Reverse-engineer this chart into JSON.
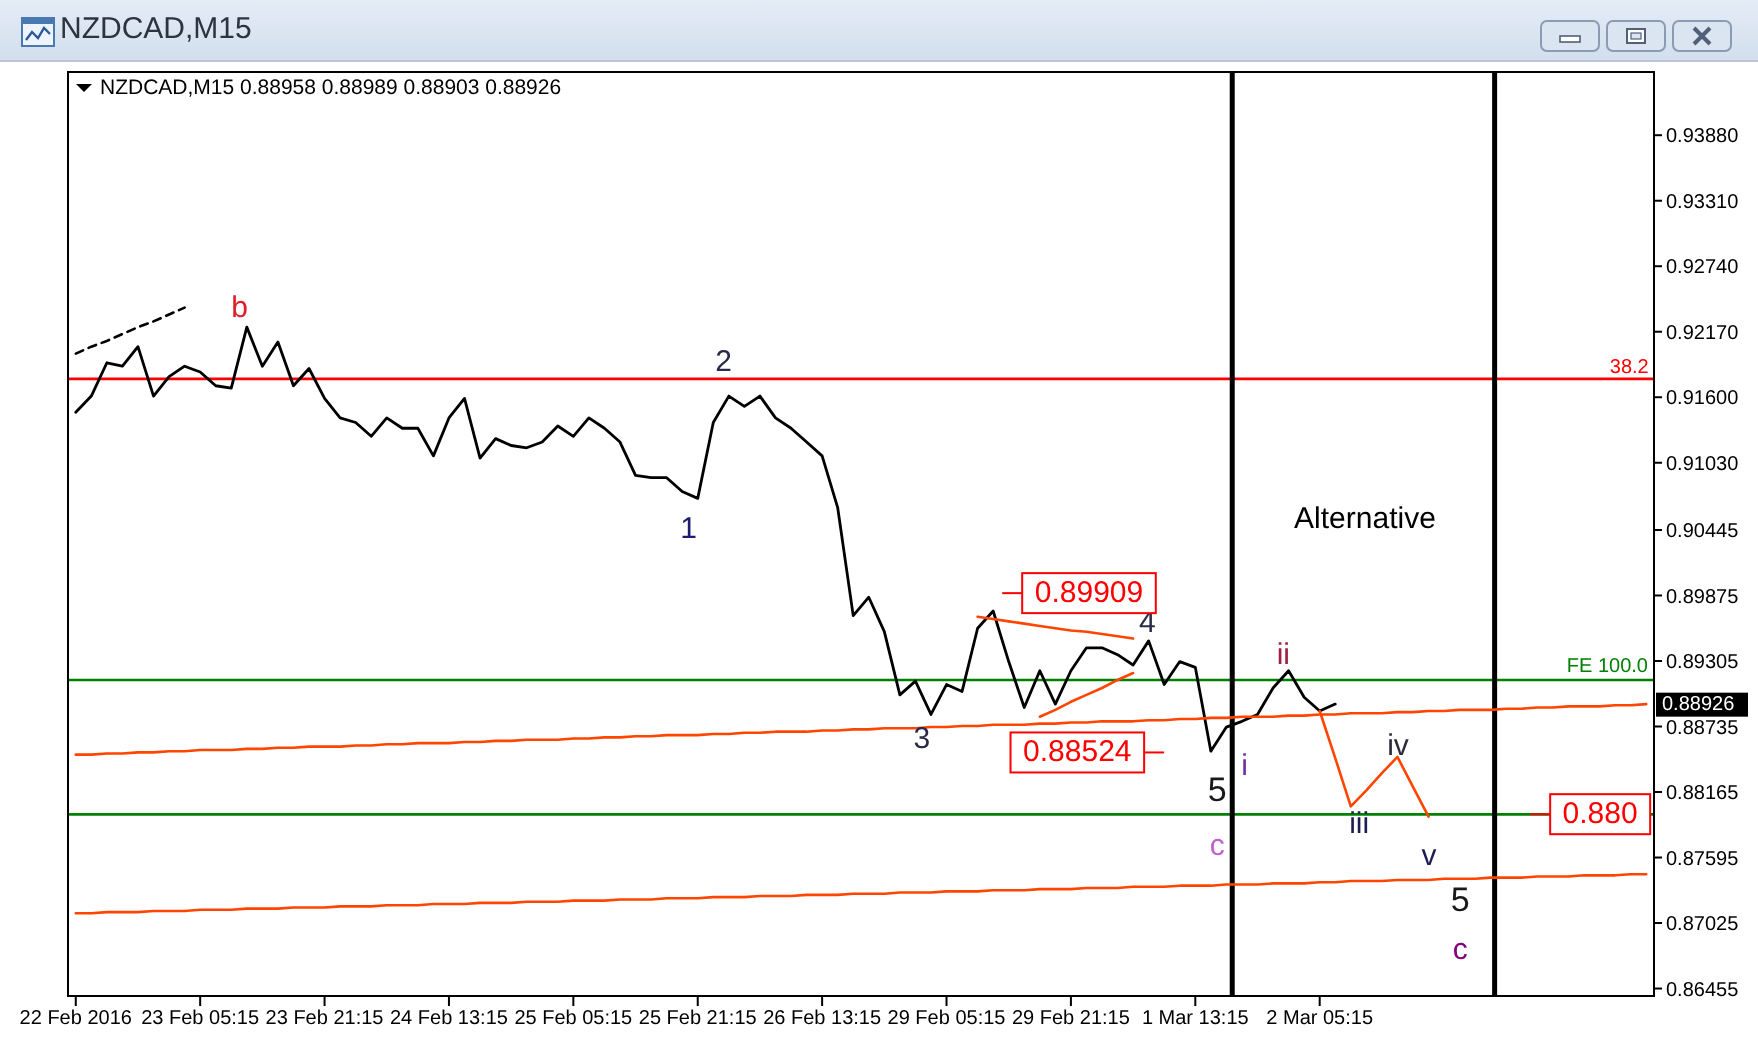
{
  "chart_data": {
    "type": "line",
    "title": "NZDCAD,M15",
    "subtitle": "NZDCAD,M15 0.88958 0.88989 0.88903 0.88926",
    "categories": [
      "22 Feb 2016",
      null,
      null,
      null,
      null,
      null,
      null,
      null,
      "23 Feb 05:15",
      null,
      null,
      null,
      null,
      null,
      null,
      null,
      "23 Feb 21:15",
      null,
      null,
      null,
      null,
      null,
      null,
      null,
      "24 Feb 13:15",
      null,
      null,
      null,
      null,
      null,
      null,
      null,
      "25 Feb 05:15",
      null,
      null,
      null,
      null,
      null,
      null,
      null,
      "25 Feb 21:15",
      null,
      null,
      null,
      null,
      null,
      null,
      null,
      "26 Feb 13:15",
      null,
      null,
      null,
      null,
      null,
      null,
      null,
      "29 Feb 05:15",
      null,
      null,
      null,
      null,
      null,
      null,
      null,
      "29 Feb 21:15",
      null,
      null,
      null,
      null,
      null,
      null,
      null,
      "1 Mar 13:15",
      null,
      null,
      null,
      null,
      null,
      null,
      null,
      "2 Mar 05:15",
      null,
      null,
      null,
      null,
      null,
      null,
      null,
      null,
      null,
      null,
      null,
      null,
      null,
      null,
      null,
      null,
      null,
      null,
      null,
      null,
      null
    ],
    "ylim": [
      0.8639,
      0.9443
    ],
    "yticks": [
      {
        "value": 0.9388,
        "label": "0.93880"
      },
      {
        "value": 0.9331,
        "label": "0.93310"
      },
      {
        "value": 0.9274,
        "label": "0.92740"
      },
      {
        "value": 0.9217,
        "label": "0.92170"
      },
      {
        "value": 0.916,
        "label": "0.91600"
      },
      {
        "value": 0.9103,
        "label": "0.91030"
      },
      0.90445,
      0.89875,
      0.89305,
      0.88735,
      0.88165,
      0.87595,
      0.87025,
      0.86455
    ],
    "series": [
      {
        "color": "#000000",
        "values": [
          0.9147,
          0.9161,
          0.919,
          0.9187,
          0.9204,
          0.9161,
          0.9178,
          0.9187,
          0.9182,
          0.917,
          0.9168,
          0.9221,
          0.9187,
          0.9208,
          0.917,
          0.9185,
          0.9159,
          0.9142,
          0.9138,
          0.9126,
          0.9142,
          0.9133,
          0.9133,
          0.9109,
          0.9142,
          0.9159,
          0.9107,
          0.9124,
          0.9118,
          0.9116,
          0.9121,
          0.9135,
          0.9126,
          0.9142,
          0.9133,
          0.9121,
          0.9092,
          0.909,
          0.909,
          0.9078,
          0.9072,
          0.9138,
          0.9161,
          0.9152,
          0.9161,
          0.9142,
          0.9133,
          0.9121,
          0.9109,
          0.9064,
          0.897,
          0.8986,
          0.8956,
          0.8901,
          0.8913,
          0.8884,
          0.891,
          0.8904,
          0.8959,
          0.8974,
          0.893,
          0.889,
          0.8922,
          0.8893,
          0.8922,
          0.8942,
          0.8942,
          0.8936,
          0.8927,
          0.8948,
          0.891,
          0.893,
          0.8925,
          0.8852,
          0.8873,
          0.8878,
          0.8884,
          0.8907,
          0.8922,
          0.8899,
          0.8887,
          0.8893,
          null,
          null,
          null,
          null,
          null,
          null,
          null,
          null,
          null,
          null,
          null,
          null,
          null,
          null,
          null,
          null,
          null,
          null,
          null,
          null
        ]
      },
      {
        "color": "#000000",
        "line_style": "dashed",
        "values": [
          0.9198,
          0.9204,
          0.9209,
          0.9215,
          0.9221,
          0.9226,
          0.9232,
          0.9238,
          null,
          null,
          null,
          null,
          null,
          null,
          null,
          null,
          null,
          null,
          null,
          null,
          null,
          null,
          null,
          null,
          null,
          null,
          null,
          null,
          null,
          null,
          null,
          null,
          null,
          null,
          null,
          null,
          null,
          null,
          null,
          null,
          null,
          null,
          null,
          null,
          null,
          null,
          null,
          null,
          null,
          null,
          null,
          null,
          null,
          null,
          null,
          null,
          null,
          null,
          null,
          null,
          null,
          null,
          null,
          null,
          null,
          null,
          null,
          null,
          null,
          null,
          null,
          null,
          null,
          null,
          null,
          null,
          null,
          null,
          null,
          null,
          null,
          null,
          null,
          null,
          null,
          null,
          null,
          null,
          null,
          null,
          null,
          null,
          null,
          null,
          null,
          null,
          null,
          null,
          null,
          null,
          null,
          null
        ]
      },
      {
        "color": "#ff4500",
        "values": [
          0.8849,
          0.8849,
          0.885,
          0.885,
          0.8851,
          0.8851,
          0.8852,
          0.8852,
          0.8853,
          0.8853,
          0.8853,
          0.8854,
          0.8854,
          0.8855,
          0.8855,
          0.8856,
          0.8856,
          0.8856,
          0.8857,
          0.8857,
          0.8858,
          0.8858,
          0.8859,
          0.8859,
          0.8859,
          0.886,
          0.886,
          0.8861,
          0.8861,
          0.8862,
          0.8862,
          0.8862,
          0.8863,
          0.8863,
          0.8864,
          0.8864,
          0.8865,
          0.8865,
          0.8866,
          0.8866,
          0.8866,
          0.8867,
          0.8867,
          0.8868,
          0.8868,
          0.8869,
          0.8869,
          0.8869,
          0.887,
          0.887,
          0.8871,
          0.8871,
          0.8872,
          0.8872,
          0.8872,
          0.8873,
          0.8873,
          0.8874,
          0.8874,
          0.8875,
          0.8875,
          0.8875,
          0.8876,
          0.8876,
          0.8877,
          0.8877,
          0.8878,
          0.8878,
          0.8878,
          0.8879,
          0.8879,
          0.888,
          0.888,
          0.8881,
          0.8881,
          0.8882,
          0.8882,
          0.8882,
          0.8883,
          0.8883,
          0.8884,
          0.8884,
          0.8885,
          0.8885,
          0.8885,
          0.8886,
          0.8886,
          0.8887,
          0.8887,
          0.8888,
          0.8888,
          0.8888,
          0.8889,
          0.8889,
          0.889,
          0.889,
          0.8891,
          0.8891,
          0.8891,
          0.8892,
          0.8892,
          0.8893
        ]
      },
      {
        "color": "#ff4500",
        "values": [
          0.8711,
          0.8711,
          0.8712,
          0.8712,
          0.8712,
          0.8713,
          0.8713,
          0.8713,
          0.8714,
          0.8714,
          0.8714,
          0.8715,
          0.8715,
          0.8715,
          0.8716,
          0.8716,
          0.8716,
          0.8717,
          0.8717,
          0.8717,
          0.8718,
          0.8718,
          0.8718,
          0.8719,
          0.8719,
          0.8719,
          0.872,
          0.872,
          0.872,
          0.8721,
          0.8721,
          0.8721,
          0.8722,
          0.8722,
          0.8722,
          0.8723,
          0.8723,
          0.8723,
          0.8724,
          0.8724,
          0.8724,
          0.8725,
          0.8725,
          0.8725,
          0.8726,
          0.8726,
          0.8726,
          0.8727,
          0.8727,
          0.8727,
          0.8728,
          0.8728,
          0.8728,
          0.8729,
          0.8729,
          0.8729,
          0.873,
          0.873,
          0.873,
          0.8731,
          0.8731,
          0.8731,
          0.8732,
          0.8732,
          0.8732,
          0.8733,
          0.8733,
          0.8733,
          0.8734,
          0.8734,
          0.8734,
          0.8735,
          0.8735,
          0.8735,
          0.8736,
          0.8736,
          0.8736,
          0.8737,
          0.8737,
          0.8737,
          0.8738,
          0.8738,
          0.8739,
          0.8739,
          0.8739,
          0.874,
          0.874,
          0.874,
          0.8741,
          0.8741,
          0.8741,
          0.8742,
          0.8742,
          0.8742,
          0.8743,
          0.8743,
          0.8743,
          0.8744,
          0.8744,
          0.8744,
          0.8745,
          0.8745
        ]
      },
      {
        "color": "#ff4500",
        "values": [
          null,
          null,
          null,
          null,
          null,
          null,
          null,
          null,
          null,
          null,
          null,
          null,
          null,
          null,
          null,
          null,
          null,
          null,
          null,
          null,
          null,
          null,
          null,
          null,
          null,
          null,
          null,
          null,
          null,
          null,
          null,
          null,
          null,
          null,
          null,
          null,
          null,
          null,
          null,
          null,
          null,
          null,
          null,
          null,
          null,
          null,
          null,
          null,
          null,
          null,
          null,
          null,
          null,
          null,
          null,
          null,
          null,
          null,
          0.8969,
          0.8967,
          0.8965,
          0.8963,
          0.8961,
          0.8959,
          0.8957,
          0.8956,
          0.8954,
          0.8952,
          0.895,
          null,
          null,
          null,
          null,
          null,
          null,
          null,
          null,
          null,
          null,
          null,
          null,
          null,
          null,
          null,
          null,
          null,
          null,
          null,
          null,
          null,
          null,
          null,
          null,
          null,
          null,
          null,
          null,
          null,
          null,
          null,
          null,
          null
        ]
      },
      {
        "color": "#ff4500",
        "values": [
          null,
          null,
          null,
          null,
          null,
          null,
          null,
          null,
          null,
          null,
          null,
          null,
          null,
          null,
          null,
          null,
          null,
          null,
          null,
          null,
          null,
          null,
          null,
          null,
          null,
          null,
          null,
          null,
          null,
          null,
          null,
          null,
          null,
          null,
          null,
          null,
          null,
          null,
          null,
          null,
          null,
          null,
          null,
          null,
          null,
          null,
          null,
          null,
          null,
          null,
          null,
          null,
          null,
          null,
          null,
          null,
          null,
          null,
          null,
          null,
          null,
          null,
          0.8882,
          0.8888,
          0.8895,
          0.8901,
          0.8907,
          0.8914,
          0.892,
          null,
          null,
          null,
          null,
          null,
          null,
          null,
          null,
          null,
          null,
          null,
          null,
          null,
          null,
          null,
          null,
          null,
          null,
          null,
          null,
          null,
          null,
          null,
          null,
          null,
          null,
          null,
          null,
          null,
          null,
          null,
          null,
          null
        ]
      },
      {
        "color": "#ff4500",
        "values": [
          null,
          null,
          null,
          null,
          null,
          null,
          null,
          null,
          null,
          null,
          null,
          null,
          null,
          null,
          null,
          null,
          null,
          null,
          null,
          null,
          null,
          null,
          null,
          null,
          null,
          null,
          null,
          null,
          null,
          null,
          null,
          null,
          null,
          null,
          null,
          null,
          null,
          null,
          null,
          null,
          null,
          null,
          null,
          null,
          null,
          null,
          null,
          null,
          null,
          null,
          null,
          null,
          null,
          null,
          null,
          null,
          null,
          null,
          null,
          null,
          null,
          null,
          null,
          null,
          null,
          null,
          null,
          null,
          null,
          null,
          null,
          null,
          null,
          null,
          null,
          null,
          null,
          null,
          null,
          null,
          0.8887,
          0.8846,
          0.8804,
          0.8818,
          0.8833,
          0.8847,
          0.8821,
          0.8795,
          null,
          null,
          null,
          null,
          null,
          null,
          null,
          null,
          null,
          null,
          null,
          null,
          null,
          null
        ]
      }
    ],
    "ref_lines": [
      {
        "axis": "y",
        "value": 0.9176,
        "color": "#ff0000"
      },
      {
        "axis": "y",
        "value": 0.8914,
        "label": "FE 100.0",
        "color": "#008000"
      },
      {
        "axis": "y",
        "value": 0.8797,
        "color": "#008000"
      }
    ],
    "annotations": [
      "b",
      "1",
      "2",
      "3",
      "4",
      "0.89909",
      "0.88524",
      "5",
      "c",
      "i",
      "ii",
      "iii",
      "iv",
      "v",
      "5",
      "c",
      "Alternative",
      "0.880",
      "38.2",
      "0.88926"
    ]
  }
}
